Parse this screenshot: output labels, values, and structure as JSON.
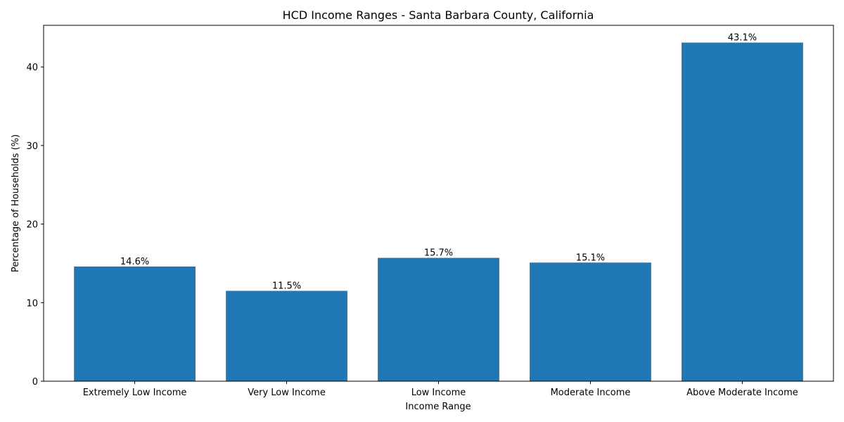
{
  "chart_data": {
    "type": "bar",
    "title": "HCD Income Ranges - Santa Barbara County, California",
    "xlabel": "Income Range",
    "ylabel": "Percentage of Households (%)",
    "categories": [
      "Extremely Low Income",
      "Very Low Income",
      "Low Income",
      "Moderate Income",
      "Above Moderate Income"
    ],
    "values": [
      14.6,
      11.5,
      15.7,
      15.1,
      43.1
    ],
    "data_labels": [
      "14.6%",
      "11.5%",
      "15.7%",
      "15.1%",
      "43.1%"
    ],
    "ylim": [
      0,
      45.3
    ],
    "yticks": [
      0,
      10,
      20,
      30,
      40
    ],
    "grid": false,
    "legend": "none",
    "colors": {
      "bar": "#1f77b4",
      "axis": "#000000",
      "background": "#ffffff"
    }
  }
}
